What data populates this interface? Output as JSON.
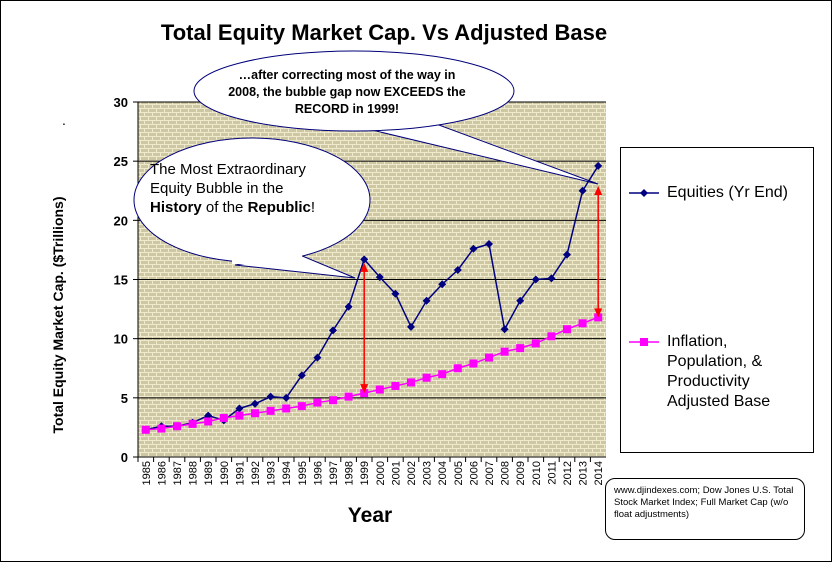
{
  "chart_data": {
    "type": "line",
    "title": "Total Equity Market Cap. Vs Adjusted Base",
    "xlabel": "Year",
    "ylabel": "Total Equity Market Cap. ($Trillions)",
    "ylim": [
      0,
      30
    ],
    "yticks": [
      0,
      5,
      10,
      15,
      20,
      25,
      30
    ],
    "categories": [
      "1985",
      "1986",
      "1987",
      "1988",
      "1989",
      "1990",
      "1991",
      "1992",
      "1993",
      "1994",
      "1995",
      "1996",
      "1997",
      "1998",
      "1999",
      "2000",
      "2001",
      "2002",
      "2003",
      "2004",
      "2005",
      "2006",
      "2007",
      "2008",
      "2009",
      "2010",
      "2011",
      "2012",
      "2013",
      "2014"
    ],
    "grid": true,
    "legend_position": "right",
    "series": [
      {
        "name": "Equities (Yr End)",
        "color": "#000080",
        "marker": "diamond",
        "values": [
          2.3,
          2.6,
          2.6,
          2.9,
          3.5,
          3.1,
          4.1,
          4.5,
          5.1,
          5.0,
          6.9,
          8.4,
          10.7,
          12.7,
          16.7,
          15.2,
          13.8,
          11.0,
          13.2,
          14.6,
          15.8,
          17.6,
          18.0,
          10.8,
          13.2,
          15.0,
          15.1,
          17.1,
          22.5,
          24.6
        ]
      },
      {
        "name": "Inflation, Population, & Productivity Adjusted Base",
        "color": "#ff00ff",
        "marker": "square",
        "values": [
          2.3,
          2.4,
          2.6,
          2.8,
          3.0,
          3.3,
          3.5,
          3.7,
          3.9,
          4.1,
          4.3,
          4.6,
          4.8,
          5.1,
          5.4,
          5.7,
          6.0,
          6.3,
          6.7,
          7.0,
          7.5,
          7.9,
          8.4,
          8.9,
          9.2,
          9.6,
          10.2,
          10.8,
          11.3,
          11.8
        ]
      }
    ],
    "arrows": [
      {
        "year": "1999",
        "from": 5.4,
        "to": 16.4,
        "color": "#ff0000"
      },
      {
        "year": "2014",
        "from": 11.8,
        "to": 22.9,
        "color": "#ff0000"
      }
    ]
  },
  "legend": {
    "items": [
      {
        "label": "Equities (Yr End)"
      },
      {
        "label": "Inflation,\nPopulation, &\nProductivity\nAdjusted Base"
      }
    ]
  },
  "callouts": {
    "top": "…after correcting most of the way in 2008, the bubble gap now EXCEEDS  the RECORD in 1999!",
    "left_pre": "The Most Extraordinary Equity Bubble in the ",
    "left_bold1": "History",
    "left_mid": " of the ",
    "left_bold2": "Republic",
    "left_post": "!"
  },
  "source": "www.djindexes.com; Dow Jones U.S. Total Stock Market Index; Full Market Cap  (w/o float adjustments)",
  "ylabel_mark": "."
}
